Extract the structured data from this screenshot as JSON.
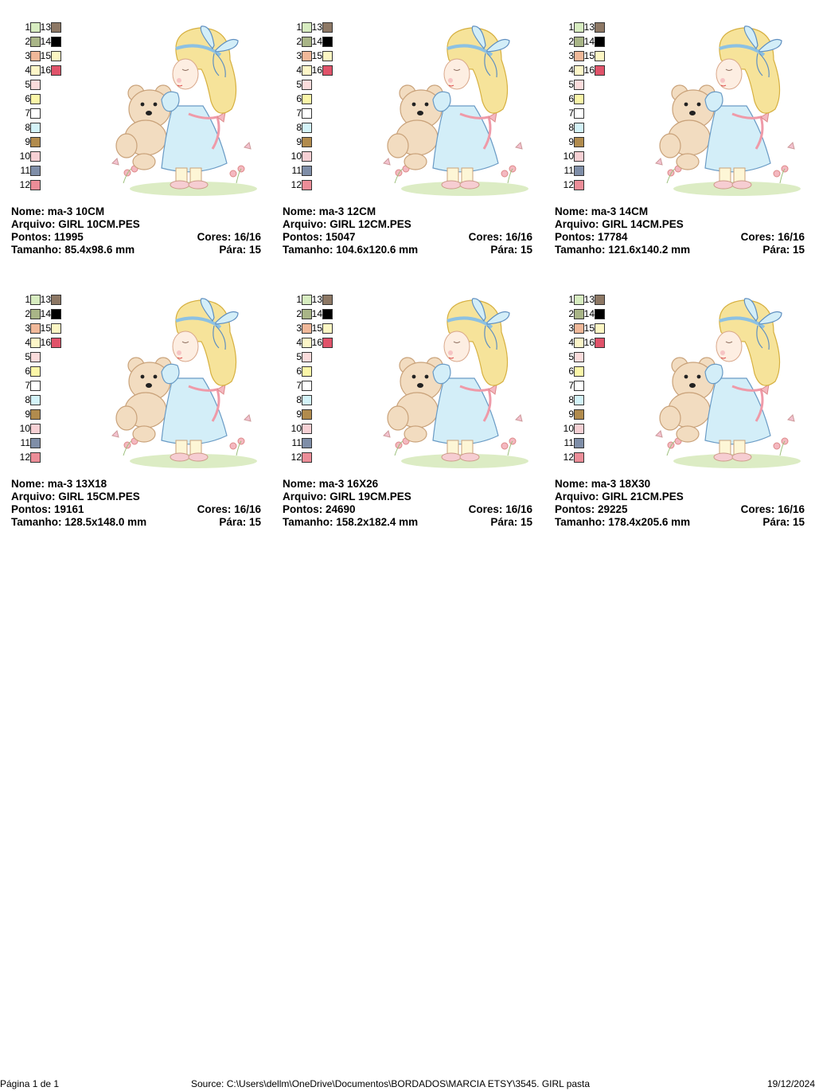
{
  "palette_colors": {
    "1": "#d7ecc0",
    "2": "#a9b587",
    "3": "#f0b899",
    "4": "#fdf6c8",
    "5": "#fbdcdc",
    "6": "#fbf6a8",
    "7": "#ffffff",
    "8": "#d3f3f9",
    "9": "#b18b4d",
    "10": "#f6d0d4",
    "11": "#7f8ea8",
    "12": "#ec8d98",
    "13": "#8d7865",
    "14": "#000000",
    "15": "#fcf6c3",
    "16": "#e0536a"
  },
  "labels": {
    "name": "Nome:",
    "file": "Arquivo:",
    "stitches": "Pontos:",
    "colors": "Cores:",
    "size": "Tamanho:",
    "stops": "Pára:"
  },
  "designs": [
    {
      "name": "ma-3 10CM",
      "file": "GIRL 10CM.PES",
      "stitches": "11995",
      "colors": "16/16",
      "size": "85.4x98.6 mm",
      "stops": "15"
    },
    {
      "name": "ma-3 12CM",
      "file": "GIRL 12CM.PES",
      "stitches": "15047",
      "colors": "16/16",
      "size": "104.6x120.6 mm",
      "stops": "15"
    },
    {
      "name": "ma-3 14CM",
      "file": "GIRL 14CM.PES",
      "stitches": "17784",
      "colors": "16/16",
      "size": "121.6x140.2 mm",
      "stops": "15"
    },
    {
      "name": "ma-3 13X18",
      "file": "GIRL 15CM.PES",
      "stitches": "19161",
      "colors": "16/16",
      "size": "128.5x148.0 mm",
      "stops": "15"
    },
    {
      "name": "ma-3 16X26",
      "file": "GIRL 19CM.PES",
      "stitches": "24690",
      "colors": "16/16",
      "size": "158.2x182.4 mm",
      "stops": "15"
    },
    {
      "name": "ma-3 18X30",
      "file": "GIRL 21CM.PES",
      "stitches": "29225",
      "colors": "16/16",
      "size": "178.4x205.6 mm",
      "stops": "15"
    }
  ],
  "footer": {
    "page": "Página 1 de 1",
    "source": "Source: C:\\Users\\dellm\\OneDrive\\Documentos\\BORDADOS\\MARCIA ETSY\\3545. GIRL pasta",
    "date": "19/12/2024"
  }
}
